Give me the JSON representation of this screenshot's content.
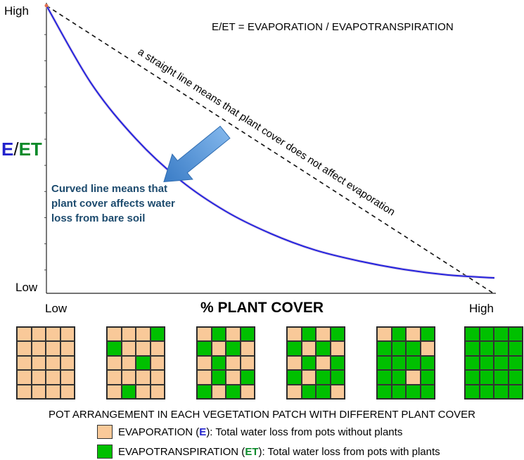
{
  "y_axis": {
    "label_e": "E",
    "label_slash": "/",
    "label_et": "ET",
    "high": "High",
    "low": "Low"
  },
  "x_axis": {
    "title": "% PLANT COVER",
    "low": "Low",
    "high": "High"
  },
  "formula": "E/ET = EVAPORATION / EVAPOTRANSPIRATION",
  "annotations": {
    "straight_line": "a straight line means that plant cover does not affect evaporation",
    "curved_line": "Curved line means that plant cover affects water loss from bare soil"
  },
  "colors": {
    "curve": "#2222dd",
    "dashed_line": "#111111",
    "arrow": "#4a90d9",
    "soil": "#f9c999",
    "plant": "#00c000"
  },
  "chart_data": {
    "type": "line",
    "series": [
      {
        "style": "dashed",
        "x": [
          0,
          100
        ],
        "y": [
          100,
          0
        ]
      },
      {
        "style": "curved",
        "x": [
          0,
          10,
          20,
          30,
          40,
          50,
          60,
          70,
          80,
          90,
          100
        ],
        "y": [
          100,
          72,
          52,
          37,
          26,
          18,
          12,
          8,
          5,
          3,
          2
        ]
      }
    ]
  },
  "patches": [
    {
      "cells": [
        "s",
        "s",
        "s",
        "s",
        "s",
        "s",
        "s",
        "s",
        "s",
        "s",
        "s",
        "s",
        "s",
        "s",
        "s",
        "s",
        "s",
        "s",
        "s",
        "s"
      ]
    },
    {
      "cells": [
        "s",
        "s",
        "s",
        "p",
        "p",
        "s",
        "s",
        "s",
        "s",
        "s",
        "p",
        "s",
        "s",
        "s",
        "s",
        "s",
        "s",
        "p",
        "s",
        "s"
      ]
    },
    {
      "cells": [
        "s",
        "p",
        "s",
        "p",
        "p",
        "s",
        "p",
        "s",
        "s",
        "p",
        "s",
        "s",
        "s",
        "p",
        "s",
        "p",
        "p",
        "s",
        "p",
        "s"
      ]
    },
    {
      "cells": [
        "s",
        "p",
        "s",
        "p",
        "p",
        "s",
        "p",
        "s",
        "s",
        "p",
        "s",
        "p",
        "p",
        "s",
        "p",
        "p",
        "s",
        "p",
        "p",
        "s"
      ]
    },
    {
      "cells": [
        "s",
        "p",
        "s",
        "p",
        "p",
        "p",
        "p",
        "s",
        "p",
        "p",
        "p",
        "p",
        "p",
        "p",
        "s",
        "p",
        "p",
        "p",
        "p",
        "p"
      ]
    },
    {
      "cells": [
        "p",
        "p",
        "p",
        "p",
        "p",
        "p",
        "p",
        "p",
        "p",
        "p",
        "p",
        "p",
        "p",
        "p",
        "p",
        "p",
        "p",
        "p",
        "p",
        "p"
      ]
    }
  ],
  "caption": "POT ARRANGEMENT IN EACH VEGETATION PATCH WITH DIFFERENT PLANT COVER",
  "legend": [
    {
      "key": "soil",
      "name": "EVAPORATION (",
      "abbr": "E",
      "desc": "): Total water loss from pots without plants"
    },
    {
      "key": "plant",
      "name": "EVAPOTRANSPIRATION (",
      "abbr": "ET",
      "desc": "): Total water loss from pots with plants"
    }
  ]
}
